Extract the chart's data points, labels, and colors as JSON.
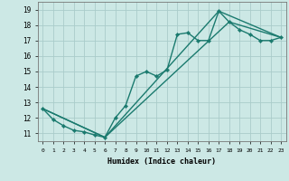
{
  "xlabel": "Humidex (Indice chaleur)",
  "bg_color": "#cce8e5",
  "grid_color": "#aaccca",
  "line_color": "#1a7a6e",
  "xlim": [
    -0.5,
    23.5
  ],
  "ylim": [
    10.5,
    19.5
  ],
  "xticks": [
    0,
    1,
    2,
    3,
    4,
    5,
    6,
    7,
    8,
    9,
    10,
    11,
    12,
    13,
    14,
    15,
    16,
    17,
    18,
    19,
    20,
    21,
    22,
    23
  ],
  "yticks": [
    11,
    12,
    13,
    14,
    15,
    16,
    17,
    18,
    19
  ],
  "series_zigzag": {
    "x": [
      0,
      1,
      2,
      3,
      4,
      5,
      6,
      7,
      8,
      9,
      10,
      11,
      12,
      13,
      14,
      15,
      16,
      17,
      18,
      19,
      20,
      21,
      22,
      23
    ],
    "y": [
      12.6,
      11.9,
      11.5,
      11.2,
      11.1,
      10.9,
      10.75,
      12.0,
      12.8,
      14.7,
      15.0,
      14.7,
      15.1,
      17.4,
      17.5,
      17.0,
      17.0,
      18.9,
      18.2,
      17.7,
      17.4,
      17.0,
      17.0,
      17.2
    ]
  },
  "series_line1": {
    "x": [
      0,
      23
    ],
    "y": [
      12.6,
      17.2
    ]
  },
  "series_line2": {
    "x": [
      0,
      23
    ],
    "y": [
      12.6,
      17.2
    ]
  },
  "line1_via": [
    [
      0,
      12.6
    ],
    [
      6,
      10.75
    ],
    [
      17,
      18.9
    ],
    [
      23,
      17.2
    ]
  ],
  "line2_via": [
    [
      0,
      12.6
    ],
    [
      6,
      10.75
    ],
    [
      18,
      18.2
    ],
    [
      23,
      17.2
    ]
  ]
}
